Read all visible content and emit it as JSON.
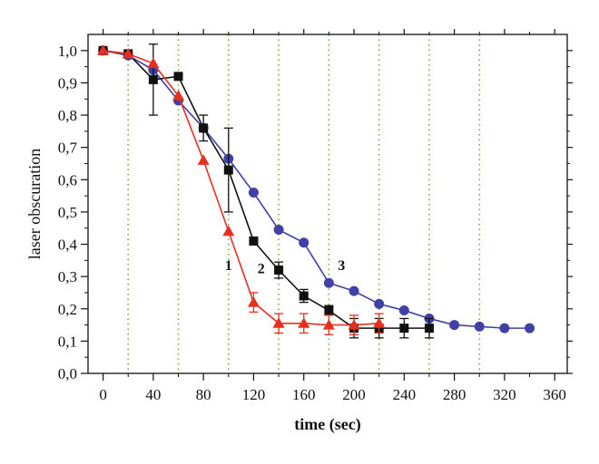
{
  "chart_data": {
    "type": "line",
    "title": "",
    "xlabel": "time (sec)",
    "ylabel": "laser obscuration",
    "xlim": [
      -12,
      370
    ],
    "ylim": [
      0,
      1.05
    ],
    "x_ticks": [
      0,
      40,
      80,
      120,
      160,
      200,
      240,
      280,
      320,
      360
    ],
    "x_tick_labels": [
      "0",
      "40",
      "80",
      "120",
      "160",
      "200",
      "240",
      "280",
      "320",
      "360"
    ],
    "y_ticks": [
      0,
      0.1,
      0.2,
      0.3,
      0.4,
      0.5,
      0.6,
      0.7,
      0.8,
      0.9,
      1.0
    ],
    "y_tick_labels": [
      "0,0",
      "0,1",
      "0,2",
      "0,3",
      "0,4",
      "0,5",
      "0,6",
      "0,7",
      "0,8",
      "0,9",
      "1,0"
    ],
    "grid": "vertical dotted lines every 20 sec from 20 to 300",
    "vertical_grid_x": [
      20,
      60,
      100,
      140,
      180,
      220,
      260,
      300
    ],
    "legend": "none",
    "series": [
      {
        "name": "1",
        "color": "#e53020",
        "marker": "triangle",
        "x": [
          0,
          20,
          40,
          60,
          80,
          100,
          120,
          140,
          160,
          180,
          200,
          220
        ],
        "y": [
          1.0,
          0.99,
          0.96,
          0.86,
          0.66,
          0.44,
          0.22,
          0.155,
          0.155,
          0.15,
          0.15,
          0.155
        ],
        "err": [
          0,
          0,
          0,
          0,
          0,
          0,
          0.03,
          0.03,
          0.03,
          0.03,
          0.03,
          0.03
        ]
      },
      {
        "name": "2",
        "color": "#111111",
        "marker": "square",
        "x": [
          0,
          20,
          40,
          60,
          80,
          100,
          120,
          140,
          160,
          180,
          200,
          220,
          240,
          260
        ],
        "y": [
          1.0,
          0.99,
          0.91,
          0.92,
          0.76,
          0.63,
          0.41,
          0.32,
          0.24,
          0.195,
          0.14,
          0.14,
          0.14,
          0.14
        ],
        "err": [
          0,
          0,
          0.11,
          0,
          0.04,
          0.13,
          0,
          0.025,
          0.02,
          0.015,
          0.03,
          0.03,
          0.03,
          0.03
        ]
      },
      {
        "name": "3",
        "color": "#4040a8",
        "marker": "circle",
        "x": [
          0,
          20,
          40,
          60,
          80,
          100,
          120,
          140,
          160,
          180,
          200,
          220,
          240,
          260,
          280,
          300,
          320,
          340
        ],
        "y": [
          1.0,
          0.985,
          0.94,
          0.845,
          0.76,
          0.665,
          0.56,
          0.445,
          0.405,
          0.28,
          0.255,
          0.215,
          0.195,
          0.17,
          0.15,
          0.145,
          0.14,
          0.14
        ],
        "err": []
      }
    ],
    "annotations": [
      {
        "text": "1",
        "x": 100,
        "y": 0.32
      },
      {
        "text": "2",
        "x": 126,
        "y": 0.31
      },
      {
        "text": "3",
        "x": 190,
        "y": 0.32
      }
    ]
  }
}
